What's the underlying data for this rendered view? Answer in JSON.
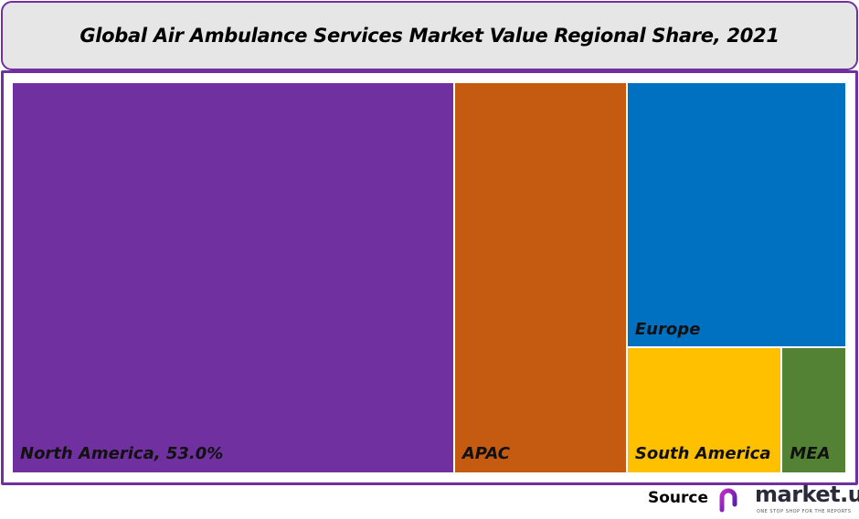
{
  "chart_data": {
    "type": "treemap",
    "title": "Global Air Ambulance Services Market Value Regional Share, 2021",
    "unit": "%",
    "items": [
      {
        "name": "North America",
        "value": 53.0,
        "label": "North America, 53.0%",
        "color": "#7030a0"
      },
      {
        "name": "APAC",
        "value": 20.7,
        "label": "APAC",
        "color": "#c55a11"
      },
      {
        "name": "Europe",
        "value": 17.8,
        "label": "Europe",
        "color": "#0070c0"
      },
      {
        "name": "South America",
        "value": 6.0,
        "label": "South America",
        "color": "#ffc000"
      },
      {
        "name": "MEA",
        "value": 2.5,
        "label": "MEA",
        "color": "#548235"
      }
    ]
  },
  "footer": {
    "source_label": "Source",
    "logo_text": "market.us",
    "logo_tagline": "ONE STOP SHOP FOR THE REPORTS"
  }
}
